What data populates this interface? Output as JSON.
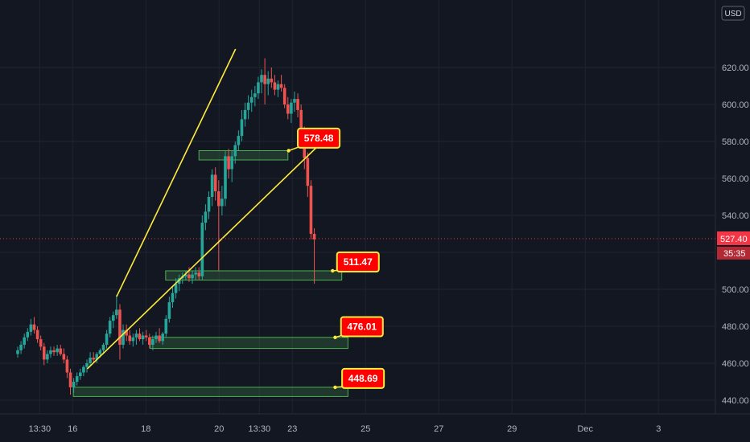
{
  "chart_data": {
    "type": "candlestick",
    "currency": "USD",
    "current_price": "527.40",
    "countdown": "35:35",
    "y_ticks": [
      "620.00",
      "600.00",
      "580.00",
      "560.00",
      "540.00",
      "520.00",
      "500.00",
      "480.00",
      "460.00",
      "440.00"
    ],
    "ylim": [
      430,
      636
    ],
    "x_ticks": [
      {
        "label": "13:30",
        "t": 0.6
      },
      {
        "label": "16",
        "t": 1.5
      },
      {
        "label": "18",
        "t": 3.5
      },
      {
        "label": "20",
        "t": 5.5
      },
      {
        "label": "13:30",
        "t": 6.6
      },
      {
        "label": "23",
        "t": 7.5
      },
      {
        "label": "25",
        "t": 9.5
      },
      {
        "label": "27",
        "t": 11.5
      },
      {
        "label": "29",
        "t": 13.5
      },
      {
        "label": "Dec",
        "t": 15.5
      },
      {
        "label": "3",
        "t": 17.5
      }
    ],
    "candles": [
      [
        0.0,
        465,
        469,
        463,
        467
      ],
      [
        0.09,
        467,
        472,
        465,
        470
      ],
      [
        0.18,
        470,
        476,
        468,
        474
      ],
      [
        0.27,
        474,
        479,
        472,
        477
      ],
      [
        0.36,
        477,
        484,
        475,
        481
      ],
      [
        0.45,
        481,
        485,
        476,
        478
      ],
      [
        0.54,
        478,
        480,
        471,
        473
      ],
      [
        0.63,
        473,
        475,
        467,
        469
      ],
      [
        0.72,
        469,
        471,
        459,
        462
      ],
      [
        0.81,
        462,
        467,
        460,
        465
      ],
      [
        0.9,
        465,
        469,
        463,
        467
      ],
      [
        0.99,
        467,
        469,
        464,
        466
      ],
      [
        1.08,
        466,
        470,
        464,
        468
      ],
      [
        1.17,
        468,
        470,
        464,
        465
      ],
      [
        1.26,
        465,
        468,
        460,
        462
      ],
      [
        1.35,
        462,
        464,
        452,
        455
      ],
      [
        1.44,
        455,
        457,
        443,
        447
      ],
      [
        1.53,
        447,
        452,
        444,
        450
      ],
      [
        1.62,
        450,
        455,
        448,
        453
      ],
      [
        1.71,
        453,
        457,
        451,
        455
      ],
      [
        1.8,
        455,
        459,
        453,
        458
      ],
      [
        1.89,
        458,
        462,
        455,
        460
      ],
      [
        1.98,
        460,
        466,
        458,
        463
      ],
      [
        2.07,
        463,
        466,
        460,
        462
      ],
      [
        2.16,
        462,
        466,
        460,
        465
      ],
      [
        2.25,
        465,
        468,
        463,
        467
      ],
      [
        2.34,
        467,
        471,
        465,
        470
      ],
      [
        2.43,
        470,
        478,
        468,
        476
      ],
      [
        2.52,
        476,
        485,
        474,
        483
      ],
      [
        2.61,
        483,
        488,
        479,
        486
      ],
      [
        2.7,
        486,
        497,
        484,
        489
      ],
      [
        2.79,
        489,
        492,
        462,
        470
      ],
      [
        2.88,
        470,
        481,
        468,
        478
      ],
      [
        2.97,
        478,
        481,
        472,
        475
      ],
      [
        3.06,
        475,
        478,
        470,
        472
      ],
      [
        3.15,
        472,
        476,
        469,
        474
      ],
      [
        3.24,
        474,
        478,
        470,
        476
      ],
      [
        3.33,
        476,
        479,
        472,
        473
      ],
      [
        3.42,
        473,
        477,
        470,
        475
      ],
      [
        3.51,
        475,
        478,
        472,
        474
      ],
      [
        3.6,
        474,
        476,
        468,
        470
      ],
      [
        3.69,
        470,
        475,
        467,
        473
      ],
      [
        3.78,
        473,
        477,
        471,
        475
      ],
      [
        3.87,
        475,
        479,
        471,
        472
      ],
      [
        3.96,
        472,
        477,
        470,
        476
      ],
      [
        4.05,
        476,
        486,
        474,
        484
      ],
      [
        4.14,
        484,
        496,
        482,
        493
      ],
      [
        4.23,
        493,
        502,
        490,
        498
      ],
      [
        4.32,
        498,
        506,
        495,
        503
      ],
      [
        4.41,
        503,
        508,
        499,
        506
      ],
      [
        4.5,
        506,
        509,
        503,
        507
      ],
      [
        4.59,
        507,
        510,
        505,
        508
      ],
      [
        4.68,
        508,
        512,
        504,
        506
      ],
      [
        4.77,
        506,
        510,
        503,
        508
      ],
      [
        4.86,
        508,
        512,
        505,
        509
      ],
      [
        4.95,
        509,
        512,
        505,
        507
      ],
      [
        5.04,
        507,
        540,
        505,
        536
      ],
      [
        5.13,
        536,
        546,
        532,
        542
      ],
      [
        5.22,
        542,
        553,
        538,
        550
      ],
      [
        5.31,
        550,
        565,
        545,
        562
      ],
      [
        5.4,
        562,
        566,
        548,
        553
      ],
      [
        5.49,
        553,
        559,
        510,
        545
      ],
      [
        5.58,
        545,
        556,
        540,
        549
      ],
      [
        5.67,
        549,
        575,
        545,
        572
      ],
      [
        5.76,
        572,
        576,
        560,
        565
      ],
      [
        5.85,
        565,
        575,
        558,
        572
      ],
      [
        5.94,
        572,
        580,
        568,
        578
      ],
      [
        6.03,
        578,
        586,
        575,
        583
      ],
      [
        6.12,
        583,
        597,
        580,
        592
      ],
      [
        6.21,
        592,
        601,
        588,
        597
      ],
      [
        6.3,
        597,
        605,
        592,
        601
      ],
      [
        6.39,
        601,
        608,
        596,
        604
      ],
      [
        6.48,
        604,
        610,
        599,
        606
      ],
      [
        6.57,
        606,
        615,
        603,
        612
      ],
      [
        6.66,
        612,
        619,
        606,
        616
      ],
      [
        6.75,
        616,
        625,
        600,
        611
      ],
      [
        6.84,
        611,
        618,
        605,
        614
      ],
      [
        6.93,
        614,
        620,
        609,
        612
      ],
      [
        7.02,
        612,
        616,
        605,
        608
      ],
      [
        7.11,
        608,
        613,
        604,
        611
      ],
      [
        7.2,
        611,
        616,
        607,
        609
      ],
      [
        7.29,
        609,
        611,
        598,
        600
      ],
      [
        7.38,
        600,
        604,
        592,
        595
      ],
      [
        7.47,
        595,
        603,
        590,
        601
      ],
      [
        7.56,
        601,
        607,
        596,
        603
      ],
      [
        7.65,
        603,
        606,
        593,
        597
      ],
      [
        7.74,
        597,
        600,
        580,
        586
      ],
      [
        7.83,
        586,
        588,
        565,
        571
      ],
      [
        7.92,
        571,
        574,
        550,
        556
      ],
      [
        8.01,
        556,
        559,
        527,
        530
      ],
      [
        8.1,
        530,
        533,
        503,
        527
      ]
    ],
    "trend_lines": [
      {
        "name": "upper channel line",
        "from": [
          2.7,
          496
        ],
        "to": [
          5.95,
          630
        ],
        "color": "#ffeb3b"
      },
      {
        "name": "lower channel line",
        "from": [
          1.9,
          457
        ],
        "to": [
          8.33,
          580
        ],
        "color": "#ffeb3b"
      }
    ],
    "zones": [
      {
        "name": "zone-578",
        "t0": 4.95,
        "t1": 7.38,
        "low": 570,
        "high": 575
      },
      {
        "name": "zone-511",
        "t0": 4.04,
        "t1": 8.85,
        "low": 505,
        "high": 510
      },
      {
        "name": "zone-476",
        "t0": 3.62,
        "t1": 9.02,
        "low": 468,
        "high": 474
      },
      {
        "name": "zone-448",
        "t0": 1.52,
        "t1": 9.02,
        "low": 442,
        "high": 447
      }
    ],
    "callouts": [
      {
        "text": "578.48",
        "box_t": 7.65,
        "box_y": 587,
        "tip_t": 7.4,
        "tip_y": 575
      },
      {
        "text": "511.47",
        "box_t": 8.72,
        "box_y": 520,
        "tip_t": 8.6,
        "tip_y": 510
      },
      {
        "text": "476.01",
        "box_t": 8.83,
        "box_y": 485,
        "tip_t": 8.67,
        "tip_y": 474
      },
      {
        "text": "448.69",
        "box_t": 8.86,
        "box_y": 457,
        "tip_t": 8.67,
        "tip_y": 447
      }
    ],
    "colors": {
      "up": "#26a69a",
      "down": "#ef5350",
      "zone_border": "#4caf50",
      "zone_fill": "rgba(76,175,80,0.22)",
      "line": "#ffeb3b",
      "callout_fill": "#ff0000",
      "callout_border": "#ffeb3b",
      "background": "#131722",
      "grid": "#1f2430"
    }
  }
}
